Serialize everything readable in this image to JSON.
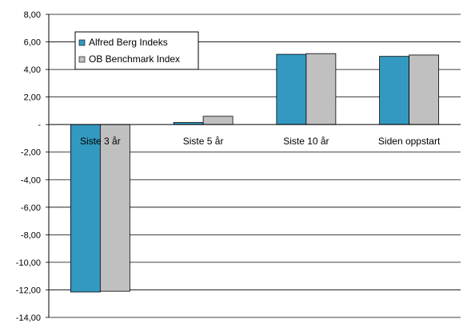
{
  "chart_data": {
    "type": "bar",
    "categories": [
      "Siste 3 år",
      "Siste 5 år",
      "Siste 10 år",
      "Siden oppstart"
    ],
    "series": [
      {
        "name": "Alfred Berg Indeks",
        "values": [
          -12.15,
          0.15,
          5.1,
          4.95
        ],
        "color": "#3399c0"
      },
      {
        "name": "OB Benchmark Index",
        "values": [
          -12.1,
          0.6,
          5.15,
          5.05
        ],
        "color": "#c0c0c0"
      }
    ],
    "ylim": [
      -14,
      8
    ],
    "yticks": [
      8,
      6,
      4,
      2,
      0,
      -2,
      -4,
      -6,
      -8,
      -10,
      -12,
      -14
    ],
    "ytick_labels": [
      "8,00",
      "6,00",
      "4,00",
      "2,00",
      "-",
      "-2,00",
      "-4,00",
      "-6,00",
      "-8,00",
      "-10,00",
      "-12,00",
      "-14,00"
    ],
    "grid": true,
    "legend": "top-left",
    "title": "",
    "xlabel": "",
    "ylabel": ""
  }
}
